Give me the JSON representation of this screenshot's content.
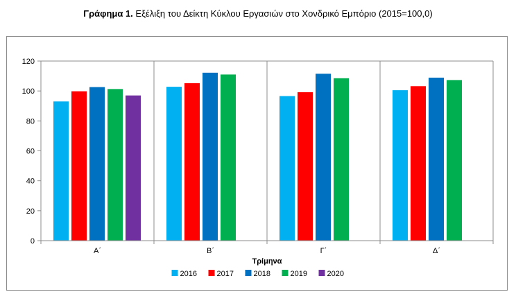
{
  "figure": {
    "title_bold": "Γράφημα 1.",
    "title_rest": "Εξέλιξη του Δείκτη Κύκλου Εργασιών στο Χονδρικό Εμπόριο (2015=100,0)"
  },
  "chart_data": {
    "type": "bar",
    "categories": [
      "Α΄",
      "Β΄",
      "Γ΄",
      "Δ΄"
    ],
    "xlabel": "Τρίμηνα",
    "ylabel": "",
    "ylim": [
      0,
      120
    ],
    "yticks": [
      0,
      20,
      40,
      60,
      80,
      100,
      120
    ],
    "grid": false,
    "legend_position": "bottom",
    "series": [
      {
        "name": "2016",
        "color": "#00B0F0",
        "values": [
          93.0,
          102.8,
          96.6,
          100.5
        ]
      },
      {
        "name": "2017",
        "color": "#FF0000",
        "values": [
          99.8,
          105.2,
          99.2,
          103.2
        ]
      },
      {
        "name": "2018",
        "color": "#0070C0",
        "values": [
          102.6,
          112.2,
          111.5,
          108.9
        ]
      },
      {
        "name": "2019",
        "color": "#00B050",
        "values": [
          101.3,
          111.0,
          108.5,
          107.3
        ]
      },
      {
        "name": "2020",
        "color": "#7030A0",
        "values": [
          97.0,
          null,
          null,
          null
        ]
      }
    ]
  }
}
